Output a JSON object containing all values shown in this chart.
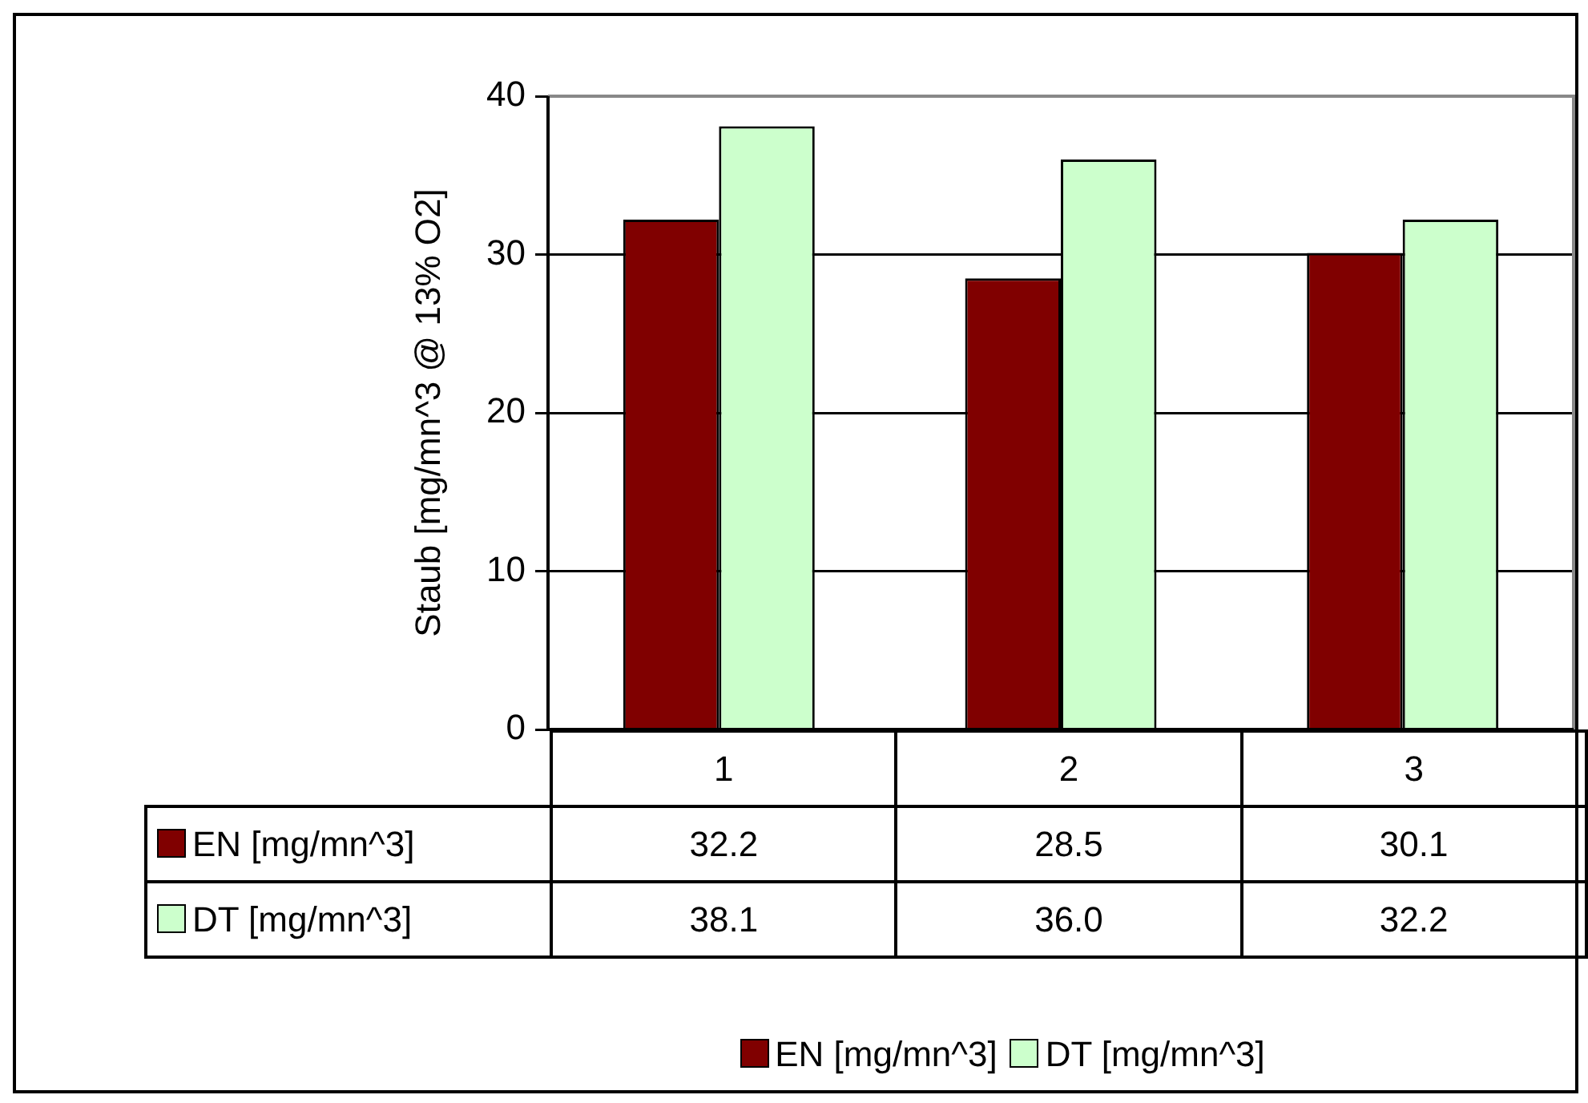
{
  "chart_data": {
    "type": "bar",
    "ylabel": "Staub [mg/mn^3 @ 13% O2]",
    "categories": [
      "1",
      "2",
      "3"
    ],
    "series": [
      {
        "name": "EN [mg/mn^3]",
        "color": "#800000",
        "values": [
          32.2,
          28.5,
          30.1
        ],
        "value_labels": [
          "32.2",
          "28.5",
          "30.1"
        ]
      },
      {
        "name": "DT [mg/mn^3]",
        "color": "#ccffcc",
        "values": [
          38.1,
          36.0,
          32.2
        ],
        "value_labels": [
          "38.1",
          "36.0",
          "32.2"
        ]
      }
    ],
    "ylim": [
      0,
      40
    ],
    "yticks": [
      0,
      10,
      20,
      30,
      40
    ],
    "grid": "y",
    "legend": "bottom"
  }
}
